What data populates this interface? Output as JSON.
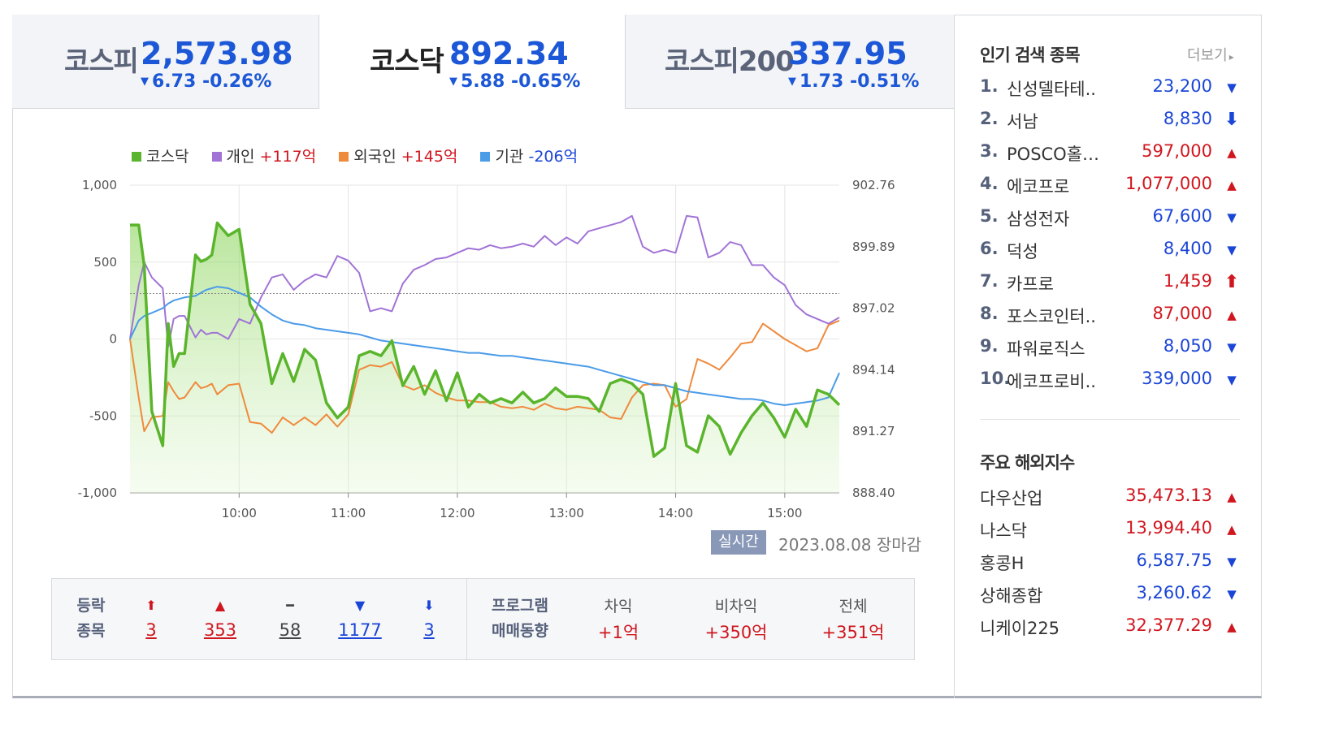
{
  "tabs": [
    {
      "name": "코스피",
      "value": "2,573.98",
      "arrow": "▼",
      "change": "6.73 -0.26%"
    },
    {
      "name": "코스닥",
      "value": "892.34",
      "arrow": "▼",
      "change": "5.88 -0.65%"
    },
    {
      "name": "코스피200",
      "value": "337.95",
      "arrow": "▼",
      "change": "1.73 -0.51%"
    }
  ],
  "legend": [
    {
      "label": "코스닥",
      "value": "",
      "color": "#5ab52c"
    },
    {
      "label": "개인",
      "value": "+117억",
      "color": "#a173d6"
    },
    {
      "label": "외국인",
      "value": "+145억",
      "color": "#ef8a3c"
    },
    {
      "label": "기관",
      "value": "-206억",
      "color": "#4a9be8"
    }
  ],
  "chart_data": {
    "type": "line",
    "x_range": [
      "09:00",
      "15:30"
    ],
    "x_ticks": [
      "10:00",
      "11:00",
      "12:00",
      "13:00",
      "14:00",
      "15:00"
    ],
    "y_left_ticks": [
      "1,000",
      "500",
      "0",
      "-500",
      "-1,000"
    ],
    "y_left_range": [
      -1000,
      1000
    ],
    "y_right_ticks": [
      "902.76",
      "899.89",
      "897.02",
      "894.14",
      "891.27",
      "888.40"
    ],
    "y_right_range": [
      888.4,
      902.76
    ],
    "reference_line_right": 897.7,
    "x_hours": [
      9.0,
      9.08,
      9.13,
      9.2,
      9.3,
      9.35,
      9.4,
      9.45,
      9.5,
      9.6,
      9.65,
      9.7,
      9.75,
      9.8,
      9.9,
      10.0,
      10.1,
      10.2,
      10.3,
      10.4,
      10.5,
      10.6,
      10.7,
      10.8,
      10.9,
      11.0,
      11.1,
      11.2,
      11.3,
      11.4,
      11.5,
      11.6,
      11.7,
      11.8,
      11.9,
      12.0,
      12.1,
      12.2,
      12.3,
      12.4,
      12.5,
      12.6,
      12.7,
      12.8,
      12.9,
      13.0,
      13.1,
      13.2,
      13.3,
      13.4,
      13.5,
      13.6,
      13.7,
      13.8,
      13.9,
      14.0,
      14.1,
      14.2,
      14.3,
      14.4,
      14.5,
      14.6,
      14.7,
      14.8,
      14.9,
      15.0,
      15.1,
      15.2,
      15.3,
      15.4,
      15.5
    ],
    "series": [
      {
        "name": "코스닥",
        "axis": "right",
        "values": [
          900.9,
          900.9,
          899.0,
          892.2,
          890.6,
          896.3,
          894.3,
          894.9,
          894.9,
          899.5,
          899.2,
          899.3,
          899.5,
          901.0,
          900.4,
          900.7,
          897.2,
          896.3,
          893.5,
          894.9,
          893.6,
          895.1,
          894.6,
          892.6,
          891.9,
          892.4,
          894.8,
          895.0,
          894.8,
          895.5,
          893.4,
          894.3,
          893.0,
          894.1,
          892.7,
          894.0,
          892.4,
          893.0,
          892.6,
          892.8,
          892.6,
          893.1,
          892.6,
          892.8,
          893.3,
          892.9,
          892.9,
          892.8,
          892.2,
          893.5,
          893.7,
          893.5,
          893.0,
          890.1,
          890.5,
          893.5,
          890.6,
          890.3,
          892.0,
          891.5,
          890.2,
          891.2,
          892.0,
          892.6,
          891.9,
          891.0,
          892.3,
          891.5,
          893.2,
          893.0,
          892.5
        ]
      },
      {
        "name": "개인",
        "axis": "left",
        "values": [
          0,
          350,
          500,
          400,
          330,
          -50,
          130,
          150,
          150,
          10,
          60,
          30,
          40,
          40,
          0,
          130,
          100,
          270,
          400,
          420,
          320,
          380,
          420,
          400,
          540,
          510,
          430,
          180,
          200,
          180,
          360,
          450,
          480,
          520,
          530,
          560,
          590,
          580,
          610,
          590,
          600,
          620,
          600,
          670,
          610,
          660,
          620,
          700,
          720,
          740,
          760,
          800,
          600,
          560,
          580,
          560,
          800,
          790,
          530,
          560,
          630,
          610,
          480,
          480,
          400,
          350,
          220,
          160,
          130,
          100,
          140
        ]
      },
      {
        "name": "외국인",
        "axis": "left",
        "values": [
          0,
          -380,
          -600,
          -510,
          -500,
          -280,
          -340,
          -390,
          -380,
          -280,
          -320,
          -310,
          -290,
          -360,
          -300,
          -290,
          -540,
          -550,
          -610,
          -510,
          -560,
          -510,
          -560,
          -490,
          -570,
          -490,
          -200,
          -170,
          -180,
          -150,
          -300,
          -330,
          -300,
          -350,
          -380,
          -400,
          -400,
          -410,
          -410,
          -440,
          -450,
          -440,
          -460,
          -420,
          -450,
          -460,
          -440,
          -450,
          -460,
          -510,
          -520,
          -380,
          -300,
          -290,
          -300,
          -440,
          -390,
          -130,
          -160,
          -200,
          -120,
          -30,
          -20,
          100,
          50,
          0,
          -40,
          -80,
          -60,
          90,
          120
        ]
      },
      {
        "name": "기관",
        "axis": "left",
        "values": [
          0,
          120,
          150,
          170,
          200,
          230,
          250,
          260,
          270,
          280,
          300,
          320,
          330,
          340,
          330,
          300,
          270,
          210,
          160,
          120,
          100,
          90,
          70,
          60,
          50,
          40,
          30,
          10,
          -10,
          -20,
          -30,
          -40,
          -50,
          -60,
          -70,
          -80,
          -90,
          -90,
          -100,
          -110,
          -110,
          -120,
          -130,
          -140,
          -150,
          -160,
          -170,
          -180,
          -200,
          -220,
          -240,
          -260,
          -280,
          -300,
          -300,
          -320,
          -340,
          -350,
          -360,
          -370,
          -380,
          -390,
          -390,
          -400,
          -420,
          -430,
          -420,
          -410,
          -400,
          -380,
          -220
        ]
      }
    ]
  },
  "status": {
    "badge": "실시간",
    "date": "2023.08.08 장마감"
  },
  "breadth": {
    "label_line1": "등락",
    "label_line2": "종목",
    "items": [
      {
        "icon": "⬆",
        "value": "3",
        "color": "red"
      },
      {
        "icon": "▲",
        "value": "353",
        "color": "red"
      },
      {
        "icon": "━",
        "value": "58",
        "color": "gray"
      },
      {
        "icon": "▼",
        "value": "1177",
        "color": "blue"
      },
      {
        "icon": "⬇",
        "value": "3",
        "color": "blue"
      }
    ]
  },
  "program": {
    "label_line1": "프로그램",
    "label_line2": "매매동향",
    "items": [
      {
        "header": "차익",
        "value": "+1억"
      },
      {
        "header": "비차익",
        "value": "+350억"
      },
      {
        "header": "전체",
        "value": "+351억"
      }
    ]
  },
  "popular": {
    "title": "인기 검색 종목",
    "more": "더보기",
    "items": [
      {
        "rank": "1.",
        "name": "신성델타테..",
        "price": "23,200",
        "arrow": "▼",
        "dir": "down"
      },
      {
        "rank": "2.",
        "name": "서남",
        "price": "8,830",
        "arrow": "⬇",
        "dir": "down"
      },
      {
        "rank": "3.",
        "name": "POSCO홀…",
        "price": "597,000",
        "arrow": "▲",
        "dir": "up"
      },
      {
        "rank": "4.",
        "name": "에코프로",
        "price": "1,077,000",
        "arrow": "▲",
        "dir": "up"
      },
      {
        "rank": "5.",
        "name": "삼성전자",
        "price": "67,600",
        "arrow": "▼",
        "dir": "down"
      },
      {
        "rank": "6.",
        "name": "덕성",
        "price": "8,400",
        "arrow": "▼",
        "dir": "down"
      },
      {
        "rank": "7.",
        "name": "카프로",
        "price": "1,459",
        "arrow": "⬆",
        "dir": "up"
      },
      {
        "rank": "8.",
        "name": "포스코인터..",
        "price": "87,000",
        "arrow": "▲",
        "dir": "up"
      },
      {
        "rank": "9.",
        "name": "파워로직스",
        "price": "8,050",
        "arrow": "▼",
        "dir": "down"
      },
      {
        "rank": "10.",
        "name": "에코프로비..",
        "price": "339,000",
        "arrow": "▼",
        "dir": "down"
      }
    ]
  },
  "world": {
    "title": "주요 해외지수",
    "items": [
      {
        "name": "다우산업",
        "price": "35,473.13",
        "arrow": "▲",
        "dir": "up"
      },
      {
        "name": "나스닥",
        "price": "13,994.40",
        "arrow": "▲",
        "dir": "up"
      },
      {
        "name": "홍콩H",
        "price": "6,587.75",
        "arrow": "▼",
        "dir": "down"
      },
      {
        "name": "상해종합",
        "price": "3,260.62",
        "arrow": "▼",
        "dir": "down"
      },
      {
        "name": "니케이225",
        "price": "32,377.29",
        "arrow": "▲",
        "dir": "up"
      }
    ]
  }
}
